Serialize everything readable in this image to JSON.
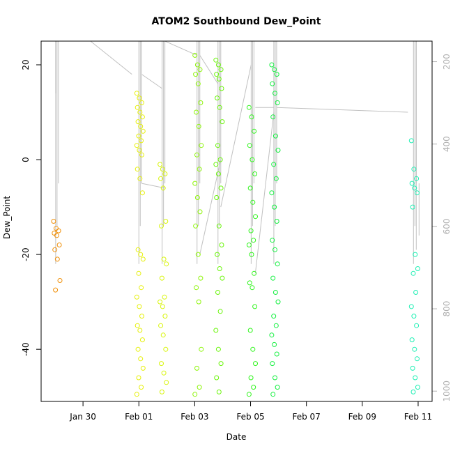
{
  "chart_data": {
    "type": "scatter",
    "title": "ATOM2 Southbound Dew_Point",
    "xlabel": "Date",
    "ylabel": "Dew_Point",
    "xlim": [
      "2024-01-28T12:00",
      "2024-02-11T12:00"
    ],
    "ylim": [
      -51,
      25
    ],
    "x_ticks": [
      {
        "date": "2024-01-30",
        "label": "Jan 30"
      },
      {
        "date": "2024-02-01",
        "label": "Feb 01"
      },
      {
        "date": "2024-02-03",
        "label": "Feb 03"
      },
      {
        "date": "2024-02-05",
        "label": "Feb 05"
      },
      {
        "date": "2024-02-07",
        "label": "Feb 07"
      },
      {
        "date": "2024-02-09",
        "label": "Feb 09"
      },
      {
        "date": "2024-02-11",
        "label": "Feb 11"
      }
    ],
    "y_ticks": [
      -40,
      -20,
      0,
      20
    ],
    "y2_axis": {
      "description": "pressure profile drawn in grey, reversed axis",
      "ylim_reversed": [
        1025,
        150
      ],
      "ticks": [
        200,
        400,
        600,
        800,
        1000
      ],
      "color": "#c0c0c0"
    },
    "grid": false,
    "legend": "none",
    "marker": "open-circle",
    "profiles": [
      {
        "time": "2024-01-29T00:30",
        "color": "#f0900a",
        "values": [
          -13,
          -14.5,
          -15,
          -15.5,
          -16,
          -18,
          -19,
          -21,
          -25.5,
          -27.5
        ]
      },
      {
        "time": "2024-02-01T00:00",
        "color": "#e6f00a",
        "values": [
          14,
          13,
          12,
          11,
          10,
          9,
          8,
          7,
          6,
          5,
          4,
          3,
          2,
          1,
          -2,
          -4,
          -7,
          -19,
          -20,
          -21,
          -24,
          -27,
          -29,
          -31,
          -33,
          -35,
          -36,
          -38,
          -40,
          -42,
          -44,
          -46,
          -48,
          -49.5
        ]
      },
      {
        "time": "2024-02-01T20:00",
        "color": "#d8f50a",
        "values": [
          -1,
          -2,
          -3,
          -4,
          -6,
          -13,
          -14,
          -21,
          -22,
          -25,
          -29,
          -30,
          -31,
          -33,
          -35,
          -37,
          -40,
          -43,
          -45,
          -47,
          -49
        ]
      },
      {
        "time": "2024-02-03T02:00",
        "color": "#8ef50a",
        "values": [
          22,
          20,
          19,
          18,
          16,
          12,
          10,
          7,
          3,
          1,
          -2,
          -5,
          -8,
          -11,
          -14,
          -20,
          -25,
          -27,
          -30,
          -40,
          -44,
          -48,
          -49.5
        ]
      },
      {
        "time": "2024-02-03T20:00",
        "color": "#6af50a",
        "values": [
          21,
          20,
          19,
          18,
          17,
          15,
          13,
          11,
          8,
          3,
          0,
          -1,
          -3,
          -6,
          -8,
          -14,
          -18,
          -20,
          -23,
          -25,
          -28,
          -32,
          -36,
          -40,
          -43,
          -46,
          -49
        ]
      },
      {
        "time": "2024-02-05T00:30",
        "color": "#2ef51a",
        "values": [
          11,
          9,
          6,
          3,
          0,
          -3,
          -6,
          -9,
          -12,
          -15,
          -17,
          -18,
          -20,
          -24,
          -26,
          -27,
          -31,
          -36,
          -40,
          -43,
          -46,
          -48,
          -49.5
        ]
      },
      {
        "time": "2024-02-05T20:00",
        "color": "#14f040",
        "values": [
          20,
          19,
          18,
          16,
          14,
          12,
          9,
          5,
          2,
          -1,
          -4,
          -7,
          -10,
          -13,
          -17,
          -19,
          -22,
          -25,
          -28,
          -30,
          -33,
          -35,
          -37,
          -39,
          -41,
          -43,
          -46,
          -48,
          -49.5
        ]
      },
      {
        "time": "2024-02-10T20:00",
        "color": "#1ef0b4",
        "values": [
          4,
          -2,
          -4,
          -5,
          -6,
          -7,
          -10,
          -20,
          -23,
          -24,
          -28,
          -31,
          -33,
          -35,
          -38,
          -40,
          -42,
          -44,
          -46,
          -48,
          -49
        ]
      }
    ]
  }
}
